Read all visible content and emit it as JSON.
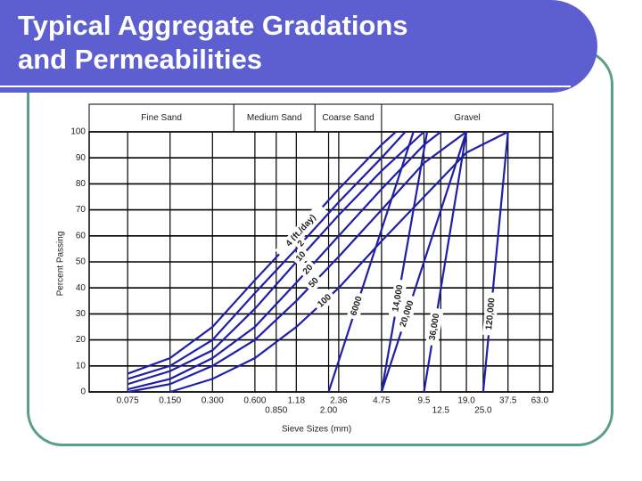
{
  "slide_title": "Typical Aggregate Gradations and Permeabilities",
  "chart_data": {
    "type": "line",
    "y_label": "Percent Passing",
    "x_label": "Sieve Sizes (mm)",
    "log_x": true,
    "grid": true,
    "xlim": [
      0.04,
      78
    ],
    "ylim": [
      0,
      100
    ],
    "yticks": [
      0,
      10,
      20,
      30,
      40,
      50,
      60,
      70,
      80,
      90,
      100
    ],
    "xticks": [
      0.075,
      {
        "value": 0.15,
        "label": "0.150"
      },
      {
        "value": 0.3,
        "label": "0.300"
      },
      {
        "value": 0.6,
        "label": "0.600"
      },
      {
        "value": 0.85,
        "label": "0.850"
      },
      1.18,
      {
        "value": 2.0,
        "label": "2.00"
      },
      2.36,
      4.75,
      9.5,
      12.5,
      {
        "value": 19,
        "label": "19.0"
      },
      {
        "value": 25,
        "label": "25.0"
      },
      37.5,
      {
        "value": 63,
        "label": "63.0"
      }
    ],
    "zones": [
      {
        "label": "Fine Sand",
        "to": 0.425
      },
      {
        "label": "Medium Sand",
        "to": 1.6
      },
      {
        "label": "Coarse Sand",
        "to": 4.75
      },
      {
        "label": "Gravel"
      }
    ],
    "color": "#1f1fa8",
    "series": [
      {
        "name": "4 (ft./day)",
        "x": [
          0.075,
          0.15,
          0.3,
          0.6,
          1.18,
          2.36,
          4.75,
          6
        ],
        "values": [
          7,
          13,
          25,
          43,
          60,
          78,
          95,
          100
        ]
      },
      {
        "name": "2",
        "x": [
          0.075,
          0.15,
          0.3,
          0.6,
          1.18,
          2.36,
          4.75,
          7
        ],
        "values": [
          5,
          10,
          20,
          38,
          55,
          73,
          90,
          100
        ]
      },
      {
        "name": "10",
        "x": [
          0.075,
          0.15,
          0.3,
          0.6,
          1.18,
          2.36,
          4.75,
          9.5
        ],
        "values": [
          3,
          8,
          16,
          32,
          50,
          68,
          85,
          100
        ]
      },
      {
        "name": "20",
        "x": [
          0.075,
          0.15,
          0.3,
          0.6,
          1.18,
          2.36,
          4.75,
          9.5,
          12.5
        ],
        "values": [
          1,
          5,
          13,
          25,
          42,
          60,
          78,
          95,
          100
        ]
      },
      {
        "name": "50",
        "x": [
          0.075,
          0.15,
          0.3,
          0.6,
          1.18,
          2.36,
          4.75,
          9.5,
          19
        ],
        "values": [
          0,
          3,
          10,
          20,
          35,
          52,
          70,
          88,
          100
        ]
      },
      {
        "name": "100",
        "x": [
          0.15,
          0.3,
          0.6,
          1.18,
          2.36,
          4.75,
          9.5,
          19,
          37.5
        ],
        "values": [
          0,
          5,
          13,
          25,
          40,
          58,
          75,
          92,
          100
        ]
      },
      {
        "name": "6000",
        "x": [
          2.0,
          8
        ],
        "values": [
          0,
          100
        ]
      },
      {
        "name": "14,000",
        "x": [
          4.75,
          10
        ],
        "values": [
          0,
          100
        ]
      },
      {
        "name": "20,000",
        "x": [
          4.75,
          19
        ],
        "values": [
          0,
          100
        ]
      },
      {
        "name": "36,000",
        "x": [
          9.5,
          19
        ],
        "values": [
          0,
          100
        ]
      },
      {
        "name": "120,000",
        "x": [
          25,
          37.5
        ],
        "values": [
          0,
          100
        ]
      }
    ]
  }
}
